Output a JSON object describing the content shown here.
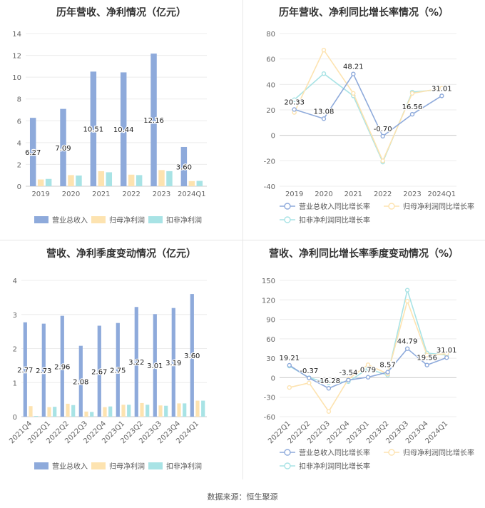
{
  "source": "数据来源：恒生聚源",
  "colors": {
    "revenue": "#8eaadb",
    "parent_profit": "#fde3b0",
    "deducted_profit": "#a8e3e5",
    "revenue_line": "#8eaadb",
    "parent_line": "#fde3b0",
    "deducted_line": "#a8e3e5"
  },
  "chart_data": [
    {
      "id": "annual-bar",
      "type": "bar",
      "title": "历年营收、净利情况（亿元）",
      "categories": [
        "2019",
        "2020",
        "2021",
        "2022",
        "2023",
        "2024Q1"
      ],
      "series": [
        {
          "name": "营业总收入",
          "values": [
            6.27,
            7.09,
            10.51,
            10.44,
            12.16,
            3.6
          ],
          "labels": [
            "6.27",
            "7.09",
            "10.51",
            "10.44",
            "12.16",
            "3.60"
          ]
        },
        {
          "name": "归母净利润",
          "values": [
            0.62,
            1.02,
            1.38,
            1.06,
            1.48,
            0.47
          ]
        },
        {
          "name": "扣非净利润",
          "values": [
            0.67,
            0.98,
            1.28,
            1.02,
            1.38,
            0.49
          ]
        }
      ],
      "ylim": [
        0,
        14
      ],
      "yticks": [
        "0",
        "2",
        "4",
        "6",
        "8",
        "10",
        "12",
        "14"
      ]
    },
    {
      "id": "annual-line",
      "type": "line",
      "title": "历年营收、净利同比增长率情况（%）",
      "categories": [
        "2019",
        "2020",
        "2021",
        "2022",
        "2023",
        "2024Q1"
      ],
      "series": [
        {
          "name": "营业总收入同比增长率",
          "values": [
            20.33,
            13.08,
            48.21,
            -0.7,
            16.56,
            31.01
          ],
          "labels": [
            "20.33",
            "13.08",
            "48.21",
            "-0.70",
            "16.56",
            "31.01"
          ]
        },
        {
          "name": "归母净利润同比增长率",
          "values": [
            18.0,
            67.0,
            33.0,
            -20.0,
            33.0,
            37.0
          ]
        },
        {
          "name": "扣非净利润同比增长率",
          "values": [
            28.0,
            48.5,
            31.0,
            -21.0,
            34.0,
            36.0
          ]
        }
      ],
      "ylim": [
        -40,
        80
      ],
      "yticks": [
        "-40",
        "-20",
        "0",
        "20",
        "40",
        "60",
        "80"
      ]
    },
    {
      "id": "quarter-bar",
      "type": "bar",
      "title": "营收、净利季度变动情况（亿元）",
      "categories": [
        "2021Q4",
        "2022Q1",
        "2022Q2",
        "2022Q3",
        "2022Q4",
        "2023Q1",
        "2023Q2",
        "2023Q3",
        "2023Q4",
        "2024Q1"
      ],
      "series": [
        {
          "name": "营业总收入",
          "values": [
            2.77,
            2.73,
            2.96,
            2.08,
            2.67,
            2.75,
            3.22,
            3.01,
            3.19,
            3.6
          ],
          "labels": [
            "2.77",
            "2.73",
            "2.96",
            "2.08",
            "2.67",
            "2.75",
            "3.22",
            "3.01",
            "3.19",
            "3.60"
          ]
        },
        {
          "name": "归母净利润",
          "values": [
            0.31,
            0.28,
            0.38,
            0.15,
            0.28,
            0.35,
            0.4,
            0.33,
            0.39,
            0.47
          ]
        },
        {
          "name": "扣非净利润",
          "values": [
            0.02,
            0.29,
            0.34,
            0.14,
            0.3,
            0.35,
            0.35,
            0.32,
            0.39,
            0.47
          ]
        }
      ],
      "ylim": [
        0,
        4
      ],
      "yticks": [
        "0",
        "1",
        "2",
        "3",
        "4"
      ]
    },
    {
      "id": "quarter-line",
      "type": "line",
      "title": "营收、净利同比增长率季度变动情况（%）",
      "categories": [
        "2022Q1",
        "2022Q2",
        "2022Q3",
        "2022Q4",
        "2023Q1",
        "2023Q2",
        "2023Q3",
        "2023Q4",
        "2024Q1"
      ],
      "series": [
        {
          "name": "营业总收入同比增长率",
          "values": [
            19.21,
            -0.37,
            -16.28,
            -3.54,
            0.79,
            8.57,
            44.79,
            19.56,
            31.01
          ],
          "labels": [
            "19.21",
            "-0.37",
            "-16.28",
            "-3.54",
            "0.79",
            "8.57",
            "44.79",
            "19.56",
            "31.01"
          ]
        },
        {
          "name": "归母净利润同比增长率",
          "values": [
            -15.0,
            -8.0,
            -52.0,
            -2.0,
            20.0,
            6.0,
            118.0,
            35.0,
            37.0
          ]
        },
        {
          "name": "扣非净利润同比增长率",
          "values": [
            18.0,
            0.0,
            -8.0,
            -6.0,
            14.0,
            4.0,
            135.0,
            38.0,
            35.0
          ]
        }
      ],
      "ylim": [
        -60,
        150
      ],
      "yticks": [
        "-60",
        "-30",
        "0",
        "30",
        "60",
        "90",
        "120",
        "150"
      ]
    }
  ]
}
